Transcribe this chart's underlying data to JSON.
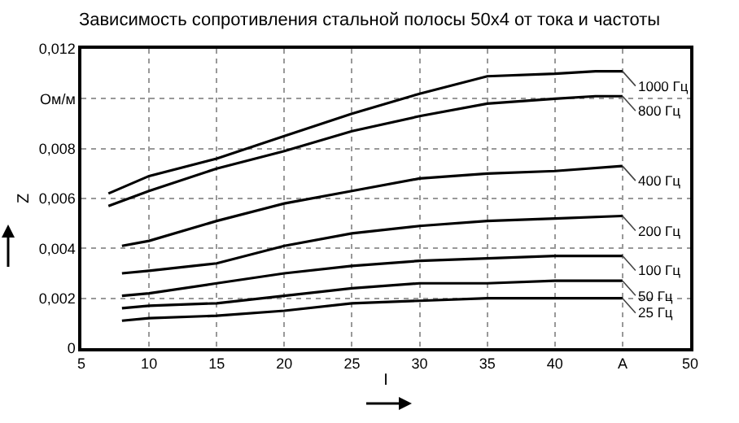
{
  "chart_data": {
    "type": "line",
    "title": "Зависимость сопротивления стальной полосы 50х4 от тока и частоты",
    "xlabel": "I",
    "ylabel": "Z",
    "x": [
      8,
      10,
      15,
      20,
      25,
      30,
      35,
      40,
      45
    ],
    "series": [
      {
        "name": "1000 Гц",
        "color": "#000000",
        "x": [
          7,
          10,
          15,
          20,
          25,
          30,
          35,
          40,
          43,
          45
        ],
        "values": [
          0.0062,
          0.0069,
          0.0076,
          0.0085,
          0.0094,
          0.0102,
          0.0109,
          0.011,
          0.0111,
          0.0111
        ]
      },
      {
        "name": "800 Гц",
        "color": "#000000",
        "x": [
          7,
          10,
          15,
          20,
          25,
          30,
          35,
          40,
          43,
          45
        ],
        "values": [
          0.0057,
          0.0063,
          0.0072,
          0.0079,
          0.0087,
          0.0093,
          0.0098,
          0.01,
          0.0101,
          0.0101
        ]
      },
      {
        "name": "400 Гц",
        "color": "#000000",
        "values": [
          0.0041,
          0.0043,
          0.0051,
          0.0058,
          0.0063,
          0.0068,
          0.007,
          0.0071,
          0.0073
        ]
      },
      {
        "name": "200 Гц",
        "color": "#000000",
        "values": [
          0.003,
          0.0031,
          0.0034,
          0.0041,
          0.0046,
          0.0049,
          0.0051,
          0.0052,
          0.0053
        ]
      },
      {
        "name": "100 Гц",
        "color": "#000000",
        "values": [
          0.0021,
          0.0022,
          0.0026,
          0.003,
          0.0033,
          0.0035,
          0.0036,
          0.0037,
          0.0037
        ]
      },
      {
        "name": "50 Гц",
        "color": "#000000",
        "values": [
          0.0016,
          0.0017,
          0.0018,
          0.0021,
          0.0024,
          0.0026,
          0.0026,
          0.0027,
          0.0027
        ]
      },
      {
        "name": "25 Гц",
        "color": "#000000",
        "values": [
          0.0011,
          0.0012,
          0.0013,
          0.0015,
          0.0018,
          0.0019,
          0.002,
          0.002,
          0.002
        ]
      }
    ],
    "xlim": [
      5,
      50
    ],
    "xticks": [
      5,
      10,
      15,
      20,
      25,
      30,
      35,
      40,
      {
        "value": 45,
        "label": "A"
      },
      50
    ],
    "ylim": [
      0,
      0.012
    ],
    "yticks": [
      0,
      {
        "value": 0.002,
        "label": "0,002"
      },
      {
        "value": 0.004,
        "label": "0,004"
      },
      {
        "value": 0.006,
        "label": "0,006"
      },
      {
        "value": 0.008,
        "label": "0,008"
      },
      {
        "value": 0.01,
        "label": "Ом/м"
      },
      {
        "value": 0.012,
        "label": "0,012"
      }
    ],
    "grid": true,
    "legend": false,
    "marker": "none",
    "line_style": "solid"
  }
}
